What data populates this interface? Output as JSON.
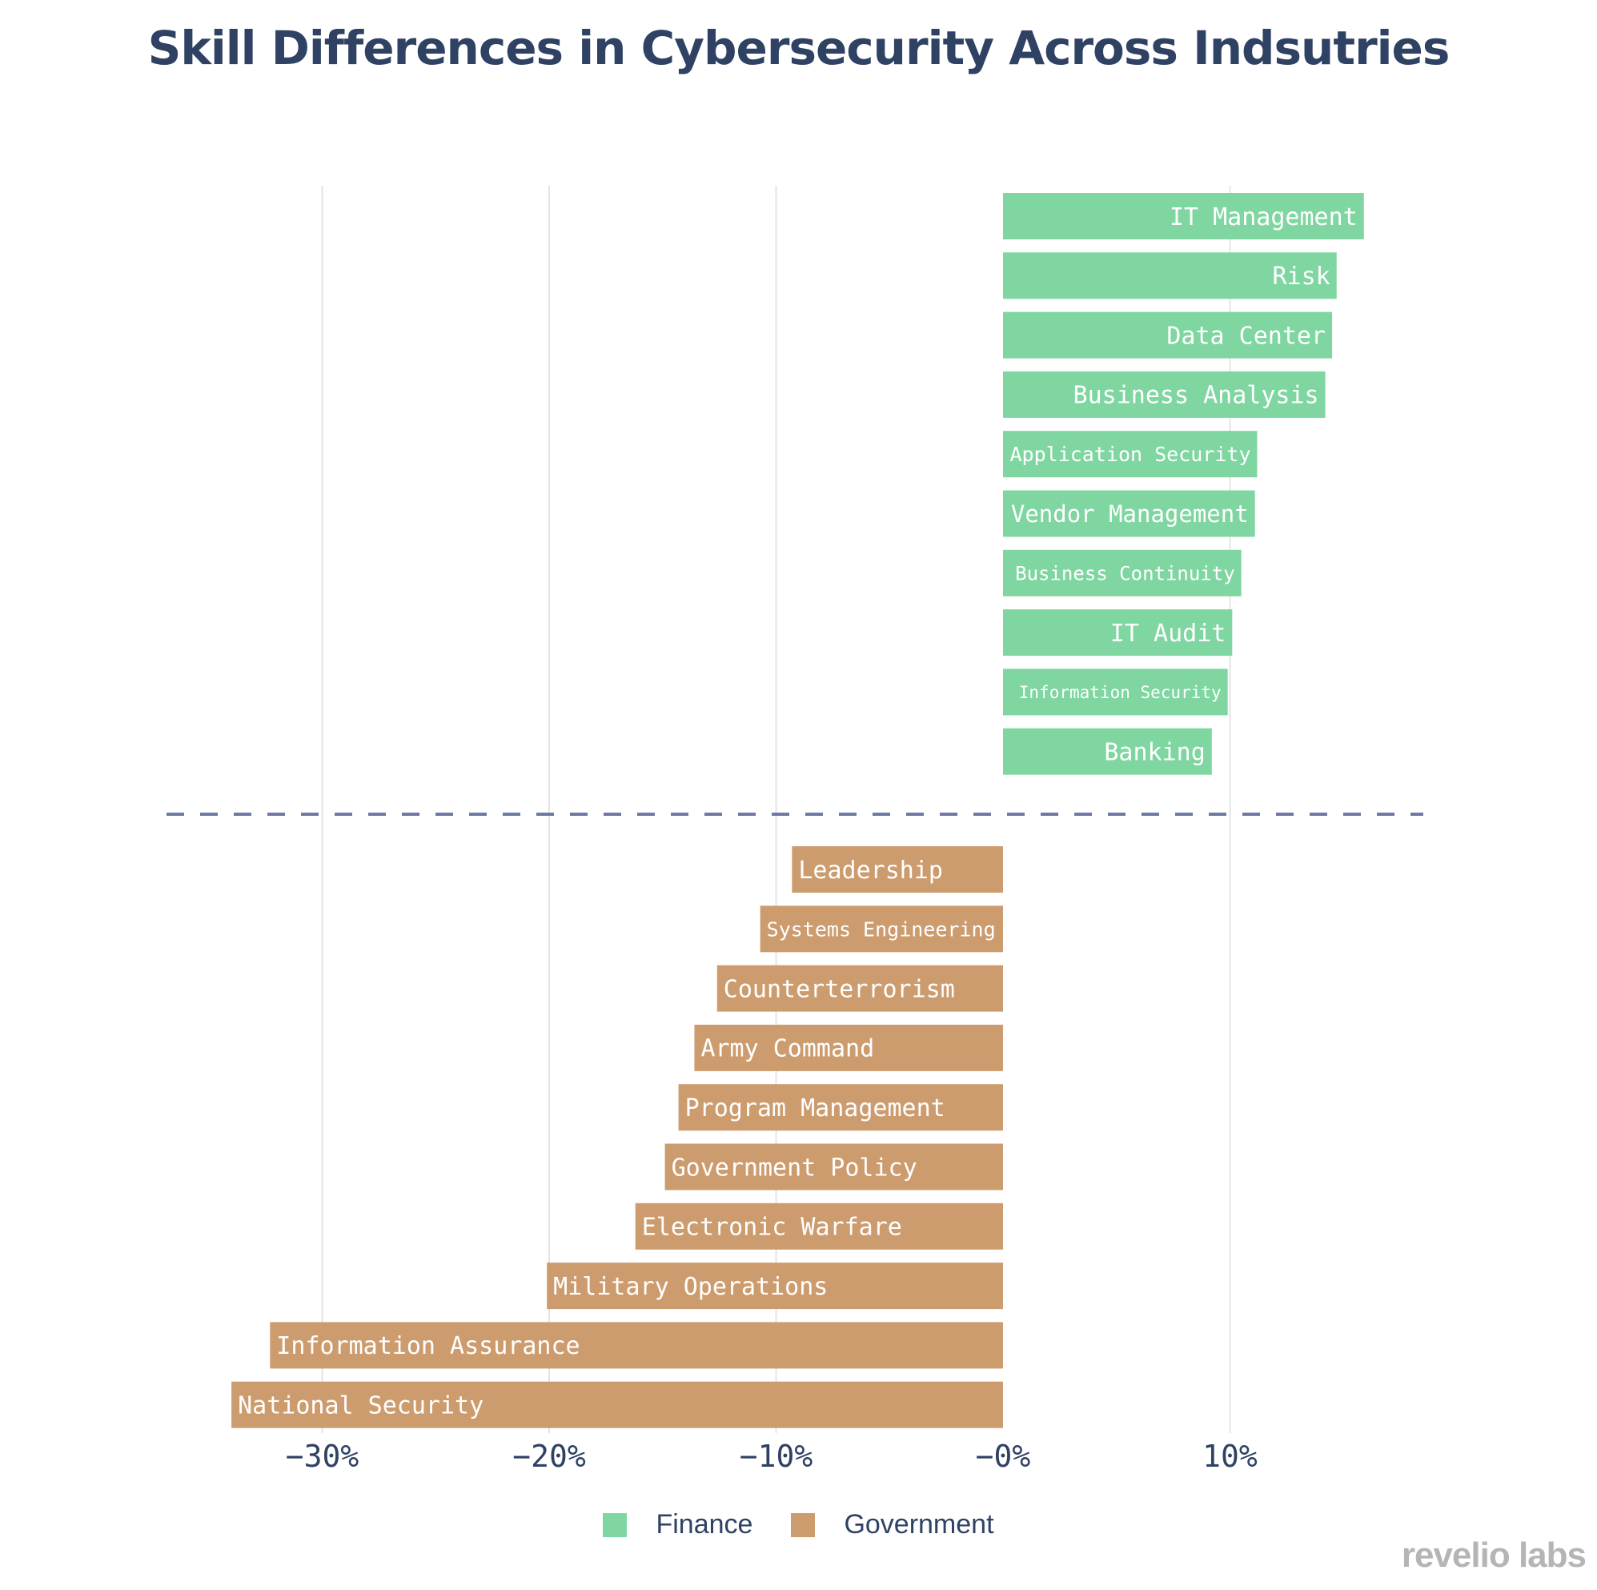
{
  "title": "Skill Differences in Cybersecurity Across Indsutries",
  "brand": "revelio labs",
  "colors": {
    "finance": "#7fd6a1",
    "government": "#cd9c6e",
    "divider": "#6d7aa6",
    "grid": "#e4e4e4",
    "text": "#2f4264"
  },
  "chart_data": {
    "type": "bar",
    "orientation": "horizontal",
    "xlim": [
      -35,
      18.5
    ],
    "xticks": [
      -30,
      -20,
      -10,
      0,
      10
    ],
    "xtick_labels": [
      "−30%",
      "−20%",
      "−10%",
      "−0%",
      "10%"
    ],
    "legend": [
      "Finance",
      "Government"
    ],
    "legend_position": "bottom",
    "series": [
      {
        "name": "Finance",
        "categories": [
          "IT Management",
          "Risk",
          "Data Center",
          "Business Analysis",
          "Application Security",
          "Vendor Management",
          "Business Continuity",
          "IT Audit",
          "Information Security",
          "Banking"
        ],
        "values": [
          15.9,
          14.7,
          14.5,
          14.2,
          11.2,
          11.1,
          10.5,
          10.1,
          9.9,
          9.2
        ]
      },
      {
        "name": "Government",
        "categories": [
          "Leadership",
          "Systems Engineering",
          "Counterterrorism",
          "Army Command",
          "Program Management",
          "Government Policy",
          "Electronic Warfare",
          "Military Operations",
          "Information Assurance",
          "National Security"
        ],
        "values": [
          -9.3,
          -10.7,
          -12.6,
          -13.6,
          -14.3,
          -14.9,
          -16.2,
          -20.1,
          -32.3,
          -34.0
        ]
      }
    ]
  }
}
